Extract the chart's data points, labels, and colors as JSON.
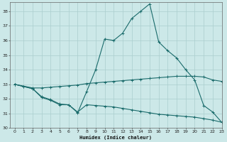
{
  "xlabel": "Humidex (Indice chaleur)",
  "bg_color": "#cce8e8",
  "line_color": "#1a6b6b",
  "grid_color": "#aacece",
  "xlim": [
    -0.5,
    23
  ],
  "ylim": [
    30,
    38.6
  ],
  "yticks": [
    30,
    31,
    32,
    33,
    34,
    35,
    36,
    37,
    38
  ],
  "xticks": [
    0,
    1,
    2,
    3,
    4,
    5,
    6,
    7,
    8,
    9,
    10,
    11,
    12,
    13,
    14,
    15,
    16,
    17,
    18,
    19,
    20,
    21,
    22,
    23
  ],
  "line1_x": [
    0,
    1,
    2,
    3,
    4,
    5,
    6,
    7,
    8,
    9,
    10,
    11,
    12,
    13,
    14,
    15,
    16,
    17,
    18,
    19,
    20,
    21,
    22,
    23
  ],
  "line1_y": [
    33.0,
    32.85,
    32.7,
    32.1,
    31.9,
    31.6,
    31.6,
    31.05,
    32.5,
    34.0,
    36.1,
    36.0,
    36.5,
    37.5,
    38.0,
    38.5,
    35.9,
    35.3,
    34.8,
    34.0,
    33.3,
    31.55,
    31.1,
    30.4
  ],
  "line2_x": [
    0,
    2,
    3,
    4,
    5,
    6,
    7,
    8,
    9,
    10,
    11,
    12,
    13,
    14,
    15,
    16,
    17,
    18,
    19,
    20,
    21,
    22,
    23
  ],
  "line2_y": [
    33.0,
    32.75,
    32.75,
    32.8,
    32.85,
    32.9,
    32.95,
    33.05,
    33.1,
    33.15,
    33.2,
    33.25,
    33.3,
    33.35,
    33.4,
    33.45,
    33.5,
    33.55,
    33.55,
    33.55,
    33.5,
    33.3,
    33.2
  ],
  "line3_x": [
    0,
    1,
    2,
    3,
    4,
    5,
    6,
    7,
    8,
    9,
    10,
    11,
    12,
    13,
    14,
    15,
    16,
    17,
    18,
    19,
    20,
    21,
    22,
    23
  ],
  "line3_y": [
    33.0,
    32.85,
    32.7,
    32.15,
    31.95,
    31.65,
    31.6,
    31.1,
    31.6,
    31.55,
    31.5,
    31.45,
    31.35,
    31.25,
    31.15,
    31.05,
    30.95,
    30.9,
    30.85,
    30.8,
    30.75,
    30.65,
    30.55,
    30.4
  ]
}
